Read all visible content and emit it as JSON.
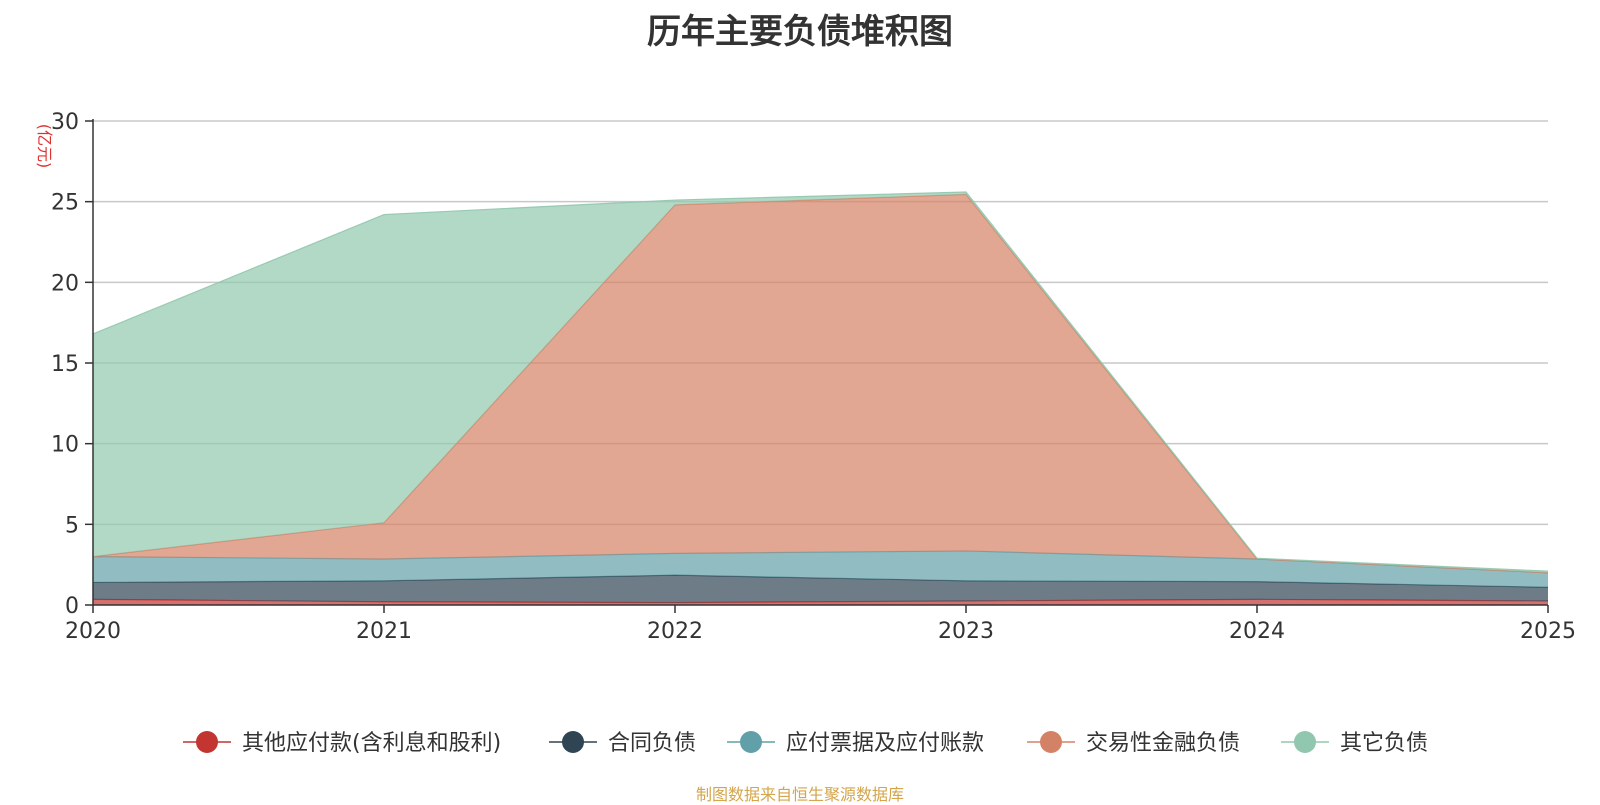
{
  "title": "历年主要负债堆积图",
  "source": "制图数据来自恒生聚源数据库",
  "chart_data": {
    "type": "area",
    "stacked": true,
    "title": "历年主要负债堆积图",
    "ylabel": "(亿元)",
    "xlabel": "",
    "categories": [
      "2020",
      "2021",
      "2022",
      "2023",
      "2024",
      "2025"
    ],
    "ylim": [
      0,
      30
    ],
    "yticks": [
      0,
      5,
      10,
      15,
      20,
      25,
      30
    ],
    "grid": true,
    "legend_position": "bottom",
    "series": [
      {
        "name": "其他应付款(含利息和股利)",
        "color": "#c23531",
        "values": [
          0.35,
          0.2,
          0.15,
          0.25,
          0.35,
          0.25
        ]
      },
      {
        "name": "合同负债",
        "color": "#2f4554",
        "values": [
          1.05,
          1.3,
          1.7,
          1.25,
          1.1,
          0.85
        ]
      },
      {
        "name": "应付票据及应付账款",
        "color": "#61a0a8",
        "values": [
          1.6,
          1.35,
          1.35,
          1.85,
          1.4,
          0.9
        ]
      },
      {
        "name": "交易性金融负债",
        "color": "#d48265",
        "values": [
          0.0,
          2.25,
          21.6,
          22.1,
          0.0,
          0.0
        ]
      },
      {
        "name": "其它负债",
        "color": "#91c7ae",
        "values": [
          13.8,
          19.1,
          0.3,
          0.15,
          0.05,
          0.1
        ]
      }
    ]
  }
}
